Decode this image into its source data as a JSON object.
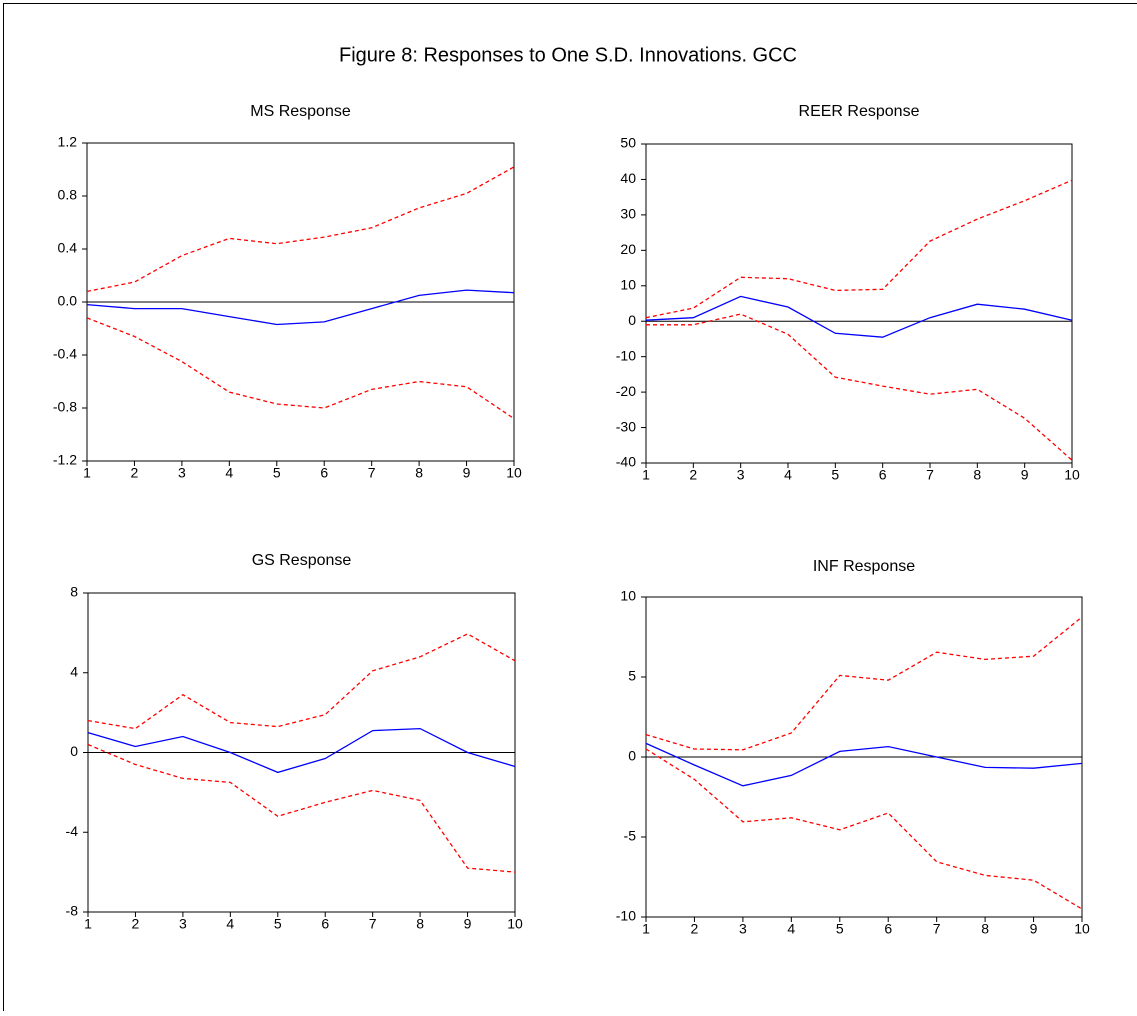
{
  "title": "Figure 8: Responses to One S.D. Innovations. GCC",
  "chart_data": [
    {
      "type": "line",
      "title": "MS Response",
      "x": [
        1,
        2,
        3,
        4,
        5,
        6,
        7,
        8,
        9,
        10
      ],
      "xlim": [
        1,
        10
      ],
      "xticks": [
        1,
        2,
        3,
        4,
        5,
        6,
        7,
        8,
        9,
        10
      ],
      "ylim": [
        -1.2,
        1.2
      ],
      "yticks": [
        -1.2,
        -0.8,
        -0.4,
        {
          "value": 0,
          "label": "0.0"
        },
        0.4,
        0.8,
        1.2
      ],
      "reference_line": 0,
      "series": [
        {
          "color": "#0000ff",
          "dashed": false,
          "values": [
            -0.02,
            -0.05,
            -0.05,
            -0.11,
            -0.17,
            -0.15,
            -0.05,
            0.05,
            0.09,
            0.07
          ]
        },
        {
          "color": "#ff0000",
          "dashed": true,
          "values": [
            0.08,
            0.15,
            0.35,
            0.48,
            0.44,
            0.49,
            0.56,
            0.71,
            0.82,
            1.02
          ]
        },
        {
          "color": "#ff0000",
          "dashed": true,
          "values": [
            -0.12,
            -0.26,
            -0.45,
            -0.68,
            -0.77,
            -0.8,
            -0.66,
            -0.6,
            -0.64,
            -0.88
          ]
        }
      ]
    },
    {
      "type": "line",
      "title": "REER Response",
      "x": [
        1,
        2,
        3,
        4,
        5,
        6,
        7,
        8,
        9,
        10
      ],
      "xlim": [
        1,
        10
      ],
      "xticks": [
        1,
        2,
        3,
        4,
        5,
        6,
        7,
        8,
        9,
        10
      ],
      "ylim": [
        -40,
        50
      ],
      "yticks": [
        -40,
        -30,
        -20,
        -10,
        0,
        10,
        20,
        30,
        40,
        50
      ],
      "reference_line": 0,
      "series": [
        {
          "color": "#0000ff",
          "dashed": false,
          "values": [
            0.3,
            1,
            7,
            4,
            -3.4,
            -4.5,
            1,
            4.8,
            3.4,
            0.3
          ]
        },
        {
          "color": "#ff0000",
          "dashed": true,
          "values": [
            1,
            3.7,
            12.4,
            12,
            8.7,
            9,
            22.6,
            28.8,
            34,
            39.8
          ]
        },
        {
          "color": "#ff0000",
          "dashed": true,
          "values": [
            -1,
            -1,
            2,
            -3.7,
            -15.8,
            -18.3,
            -20.6,
            -19.2,
            -27.4,
            -39.2
          ]
        }
      ]
    },
    {
      "type": "line",
      "title": "GS Response",
      "x": [
        1,
        2,
        3,
        4,
        5,
        6,
        7,
        8,
        9,
        10
      ],
      "xlim": [
        1,
        10
      ],
      "xticks": [
        1,
        2,
        3,
        4,
        5,
        6,
        7,
        8,
        9,
        10
      ],
      "ylim": [
        -8,
        8
      ],
      "yticks": [
        -8,
        -4,
        0,
        4,
        8
      ],
      "reference_line": 0,
      "series": [
        {
          "color": "#0000ff",
          "dashed": false,
          "values": [
            1,
            0.3,
            0.8,
            0,
            -1,
            -0.3,
            1.1,
            1.2,
            0,
            -0.7
          ]
        },
        {
          "color": "#ff0000",
          "dashed": true,
          "values": [
            1.6,
            1.2,
            2.9,
            1.5,
            1.3,
            1.9,
            4.1,
            4.8,
            5.95,
            4.6
          ]
        },
        {
          "color": "#ff0000",
          "dashed": true,
          "values": [
            0.4,
            -0.6,
            -1.3,
            -1.5,
            -3.2,
            -2.5,
            -1.9,
            -2.4,
            -5.8,
            -6
          ]
        }
      ]
    },
    {
      "type": "line",
      "title": "INF Response",
      "x": [
        1,
        2,
        3,
        4,
        5,
        6,
        7,
        8,
        9,
        10
      ],
      "xlim": [
        1,
        10
      ],
      "xticks": [
        1,
        2,
        3,
        4,
        5,
        6,
        7,
        8,
        9,
        10
      ],
      "ylim": [
        -10,
        10
      ],
      "yticks": [
        -10,
        -5,
        0,
        5,
        10
      ],
      "reference_line": 0,
      "series": [
        {
          "color": "#0000ff",
          "dashed": false,
          "values": [
            0.85,
            -0.5,
            -1.8,
            -1.15,
            0.35,
            0.65,
            0,
            -0.65,
            -0.7,
            -0.4
          ]
        },
        {
          "color": "#ff0000",
          "dashed": true,
          "values": [
            1.4,
            0.5,
            0.45,
            1.5,
            5.1,
            4.8,
            6.55,
            6.1,
            6.3,
            8.75
          ]
        },
        {
          "color": "#ff0000",
          "dashed": true,
          "values": [
            0.5,
            -1.4,
            -4.05,
            -3.8,
            -4.55,
            -3.5,
            -6.55,
            -7.4,
            -7.7,
            -9.5
          ]
        }
      ]
    }
  ]
}
